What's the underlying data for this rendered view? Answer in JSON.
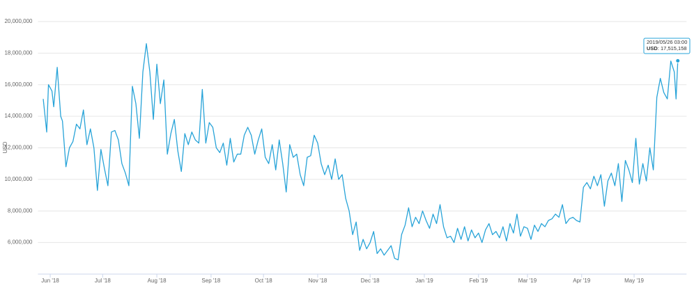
{
  "chart_data": {
    "type": "line",
    "y_label": "USD",
    "x": [
      1,
      3,
      4,
      6,
      7,
      9,
      11,
      12,
      14,
      16,
      18,
      20,
      22,
      24,
      26,
      28,
      30,
      32,
      34,
      36,
      38,
      40,
      42,
      44,
      46,
      48,
      50,
      52,
      54,
      56,
      58,
      60,
      62,
      64,
      66,
      68,
      70,
      72,
      74,
      76,
      78,
      80,
      82,
      84,
      86,
      88,
      90,
      92,
      94,
      96,
      98,
      100,
      102,
      104,
      106,
      108,
      110,
      112,
      114,
      116,
      118,
      120,
      122,
      124,
      126,
      128,
      130,
      132,
      134,
      136,
      138,
      140,
      142,
      144,
      146,
      148,
      150,
      152,
      154,
      156,
      158,
      160,
      162,
      164,
      166,
      168,
      170,
      172,
      174,
      176,
      178,
      180,
      182,
      184,
      186,
      188,
      190,
      192,
      194,
      196,
      198,
      200,
      202,
      204,
      206,
      208,
      210,
      212,
      214,
      216,
      218,
      220,
      222,
      224,
      226,
      228,
      230,
      232,
      234,
      236,
      238,
      240,
      242,
      244,
      246,
      248,
      250,
      252,
      254,
      256,
      258,
      260,
      262,
      264,
      266,
      268,
      270,
      272,
      274,
      276,
      278,
      280,
      282,
      284,
      286,
      288,
      290,
      292,
      294,
      296,
      298,
      300,
      302,
      304,
      306,
      308,
      310,
      312,
      314,
      316,
      318,
      320,
      322,
      324,
      326,
      328,
      330,
      332,
      334,
      336,
      338,
      340,
      342,
      344,
      346,
      348,
      350,
      352,
      354,
      356,
      358,
      360,
      362,
      363,
      364
    ],
    "series": [
      {
        "name": "USD",
        "color": "#27a3d8",
        "values": [
          15100000,
          13000000,
          16000000,
          15600000,
          14600000,
          17100000,
          14000000,
          13700000,
          10800000,
          12000000,
          12400000,
          13500000,
          13200000,
          14400000,
          12200000,
          13200000,
          12000000,
          9300000,
          11900000,
          10700000,
          9600000,
          13000000,
          13100000,
          12500000,
          11000000,
          10400000,
          9600000,
          15900000,
          14800000,
          12600000,
          16800000,
          18600000,
          16800000,
          13800000,
          17300000,
          14800000,
          16300000,
          11600000,
          12900000,
          13800000,
          11800000,
          10500000,
          12900000,
          12200000,
          13000000,
          12500000,
          12300000,
          15700000,
          12300000,
          13600000,
          13300000,
          12000000,
          11700000,
          12300000,
          10900000,
          12600000,
          11100000,
          11600000,
          11600000,
          12800000,
          13300000,
          12800000,
          11600000,
          12500000,
          13200000,
          11400000,
          11000000,
          12200000,
          10600000,
          12500000,
          11000000,
          9200000,
          12200000,
          11400000,
          11600000,
          10300000,
          9600000,
          11400000,
          11500000,
          12800000,
          12300000,
          11000000,
          10300000,
          10900000,
          10000000,
          11300000,
          10000000,
          10300000,
          8800000,
          8000000,
          6500000,
          7300000,
          5500000,
          6200000,
          5600000,
          6000000,
          6700000,
          5300000,
          5600000,
          5200000,
          5500000,
          5800000,
          5000000,
          4900000,
          6500000,
          7100000,
          8200000,
          7000000,
          7600000,
          7200000,
          8000000,
          7400000,
          6900000,
          7800000,
          7200000,
          8400000,
          7000000,
          6300000,
          6400000,
          6000000,
          6900000,
          6200000,
          7000000,
          6100000,
          6800000,
          6300000,
          6600000,
          6000000,
          6800000,
          7200000,
          6500000,
          6700000,
          6300000,
          7000000,
          6100000,
          7200000,
          6600000,
          7800000,
          6400000,
          7000000,
          6900000,
          6200000,
          7100000,
          6700000,
          7200000,
          7000000,
          7400000,
          7500000,
          7800000,
          7600000,
          8400000,
          7200000,
          7500000,
          7600000,
          7400000,
          7300000,
          9500000,
          9800000,
          9400000,
          10200000,
          9600000,
          10300000,
          8300000,
          9900000,
          10400000,
          9600000,
          11000000,
          8600000,
          11200000,
          10600000,
          9800000,
          12600000,
          9700000,
          11000000,
          9900000,
          12000000,
          10600000,
          15200000,
          16400000,
          15500000,
          15100000,
          17500000,
          16800000,
          15100000,
          17515158
        ]
      }
    ],
    "xlim": [
      -2,
      369
    ],
    "xticks": [
      {
        "value": 5,
        "label": "Jun '18"
      },
      {
        "value": 35,
        "label": "Jul '18"
      },
      {
        "value": 66,
        "label": "Aug '18"
      },
      {
        "value": 97,
        "label": "Sep '18"
      },
      {
        "value": 127,
        "label": "Oct '18"
      },
      {
        "value": 158,
        "label": "Nov '18"
      },
      {
        "value": 188,
        "label": "Dec '18"
      },
      {
        "value": 219,
        "label": "Jan '19"
      },
      {
        "value": 250,
        "label": "Feb '19"
      },
      {
        "value": 278,
        "label": "Mar '19"
      },
      {
        "value": 309,
        "label": "Apr '19"
      },
      {
        "value": 339,
        "label": "May '19"
      }
    ],
    "ylim": [
      4000000,
      20000000
    ],
    "yticks": [
      {
        "value": 6000000,
        "label": "6,000,000"
      },
      {
        "value": 8000000,
        "label": "8,000,000"
      },
      {
        "value": 10000000,
        "label": "10,000,000"
      },
      {
        "value": 12000000,
        "label": "12,000,000"
      },
      {
        "value": 14000000,
        "label": "14,000,000"
      },
      {
        "value": 16000000,
        "label": "16,000,000"
      },
      {
        "value": 18000000,
        "label": "18,000,000"
      },
      {
        "value": 20000000,
        "label": "20,000,000"
      }
    ],
    "grid": true,
    "tooltip": {
      "title": "2019/05/26 03:00",
      "value_label": "17,515,158"
    }
  }
}
